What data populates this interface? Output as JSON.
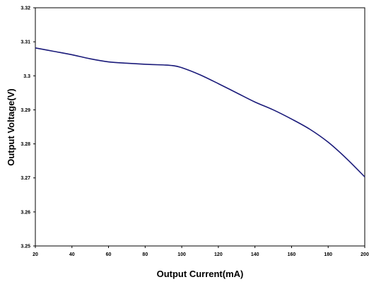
{
  "chart_data": {
    "type": "line",
    "xlabel": "Output Current(mA)",
    "ylabel": "Output Voltage(V)",
    "xlim": [
      20,
      200
    ],
    "ylim": [
      3.25,
      3.32
    ],
    "x_ticks": [
      "20",
      "40",
      "60",
      "80",
      "100",
      "120",
      "140",
      "160",
      "180",
      "200"
    ],
    "y_ticks": [
      "3.25",
      "3.26",
      "3.27",
      "3.28",
      "3.29",
      "3.3",
      "3.31",
      "3.32"
    ],
    "grid": false,
    "legend": "none",
    "series": [
      {
        "color": "#1a1a7a",
        "x": [
          20,
          30,
          40,
          50,
          60,
          70,
          80,
          90,
          95,
          100,
          110,
          120,
          130,
          140,
          150,
          160,
          170,
          180,
          190,
          200
        ],
        "y": [
          3.3082,
          3.3072,
          3.3062,
          3.305,
          3.3041,
          3.3037,
          3.3034,
          3.3032,
          3.303,
          3.3024,
          3.3003,
          3.2977,
          3.295,
          3.2923,
          3.29,
          3.2873,
          3.2843,
          3.2805,
          3.2757,
          3.2703
        ]
      }
    ]
  }
}
